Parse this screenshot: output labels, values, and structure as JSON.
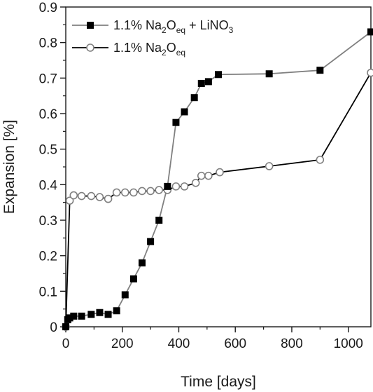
{
  "chart_data": {
    "type": "line",
    "xlabel": "Time [days]",
    "ylabel": "Expansion [%]",
    "xlim": [
      0,
      1080
    ],
    "ylim": [
      0,
      0.9
    ],
    "x_major_ticks": [
      0,
      200,
      400,
      600,
      800,
      1000
    ],
    "y_major_ticks": [
      0,
      0.1,
      0.2,
      0.3,
      0.4,
      0.5,
      0.6,
      0.7,
      0.8,
      0.9
    ],
    "x_tick_labels": [
      "0",
      "200",
      "400",
      "600",
      "800",
      "1000"
    ],
    "y_tick_labels": [
      "0",
      "0.1",
      "0.2",
      "0.3",
      "0.4",
      "0.5",
      "0.6",
      "0.7",
      "0.8",
      "0.9"
    ],
    "grid": false,
    "legend_position": "top-left",
    "series": [
      {
        "name": "1.1% Na2Oeq + LiNO3",
        "legend_main": "1.1% Na",
        "legend_sub1": "2",
        "legend_mid": "O",
        "legend_sub2": "eq",
        "legend_tail": " + LiNO",
        "legend_sub3": "3",
        "marker": "filled-square",
        "line_color": "#808080",
        "marker_color": "#000000",
        "x": [
          0,
          7,
          14,
          28,
          56,
          90,
          120,
          150,
          180,
          210,
          240,
          270,
          300,
          330,
          360,
          390,
          420,
          455,
          480,
          505,
          540,
          720,
          900,
          1080
        ],
        "y": [
          0.0,
          0.02,
          0.025,
          0.03,
          0.03,
          0.035,
          0.04,
          0.035,
          0.045,
          0.09,
          0.135,
          0.18,
          0.24,
          0.3,
          0.395,
          0.575,
          0.605,
          0.645,
          0.685,
          0.69,
          0.71,
          0.712,
          0.722,
          0.83
        ]
      },
      {
        "name": "1.1% Na2Oeq",
        "legend_main": "1.1% Na",
        "legend_sub1": "2",
        "legend_mid": "O",
        "legend_sub2": "eq",
        "legend_tail": "",
        "legend_sub3": "",
        "marker": "open-circle",
        "line_color": "#000000",
        "marker_color": "#808080",
        "x": [
          0,
          14,
          28,
          56,
          90,
          120,
          150,
          180,
          210,
          240,
          270,
          300,
          330,
          360,
          390,
          420,
          460,
          480,
          505,
          545,
          720,
          900,
          1080
        ],
        "y": [
          0.0,
          0.355,
          0.37,
          0.368,
          0.368,
          0.365,
          0.36,
          0.378,
          0.378,
          0.378,
          0.382,
          0.382,
          0.385,
          0.385,
          0.395,
          0.395,
          0.405,
          0.425,
          0.425,
          0.435,
          0.452,
          0.47,
          0.715
        ]
      }
    ]
  }
}
